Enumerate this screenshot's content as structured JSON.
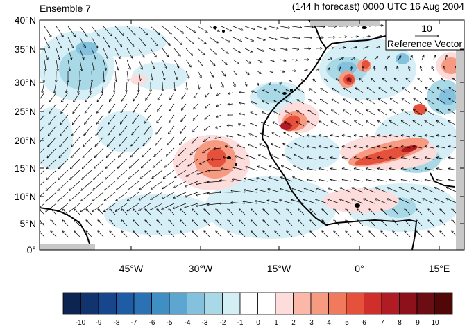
{
  "header": {
    "left_title": "Ensemble 7",
    "right_title": "(144 h forecast) 0000 UTC 16 Aug 2004"
  },
  "reference_vector": {
    "value": "10",
    "label": "Reference Vector"
  },
  "axes": {
    "lat_labels": [
      "40°N",
      "35°N",
      "30°N",
      "25°N",
      "20°N",
      "15°N",
      "10°N",
      "5°N",
      "0°"
    ],
    "lon_labels": [
      "45°W",
      "30°W",
      "15°W",
      "0°",
      "15°E"
    ]
  },
  "colorbar": {
    "labels": [
      "-10",
      "-9",
      "-8",
      "-7",
      "-6",
      "-5",
      "-4",
      "-3",
      "-2",
      "-1",
      "0",
      "1",
      "2",
      "3",
      "4",
      "5",
      "6",
      "7",
      "8",
      "9",
      "10"
    ],
    "colors": [
      "#0b2550",
      "#12346e",
      "#17468c",
      "#1e5da6",
      "#2a72b4",
      "#3f8ec4",
      "#5ea6d2",
      "#84c1dd",
      "#a9d9e6",
      "#d4eef5",
      "#ffffff",
      "#ffffff",
      "#fddcdc",
      "#fbb8a8",
      "#f79a82",
      "#f1795c",
      "#e5513b",
      "#cf2e2a",
      "#b11b23",
      "#8c111b",
      "#6b0d12",
      "#4f0708"
    ]
  }
}
